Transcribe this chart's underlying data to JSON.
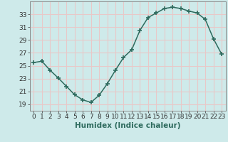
{
  "x": [
    0,
    1,
    2,
    3,
    4,
    5,
    6,
    7,
    8,
    9,
    10,
    11,
    12,
    13,
    14,
    15,
    16,
    17,
    18,
    19,
    20,
    21,
    22,
    23
  ],
  "y": [
    25.5,
    25.7,
    24.3,
    23.1,
    21.8,
    20.5,
    19.7,
    19.3,
    20.4,
    22.2,
    24.3,
    26.3,
    27.5,
    30.5,
    32.5,
    33.2,
    33.9,
    34.1,
    33.9,
    33.5,
    33.2,
    32.2,
    29.2,
    26.8
  ],
  "line_color": "#2e6b5e",
  "marker": "+",
  "marker_size": 4,
  "marker_lw": 1.2,
  "bg_color": "#ceeaea",
  "grid_color": "#e8c8c8",
  "xlabel": "Humidex (Indice chaleur)",
  "ylim": [
    18,
    35
  ],
  "xlim": [
    -0.5,
    23.5
  ],
  "yticks": [
    19,
    21,
    23,
    25,
    27,
    29,
    31,
    33
  ],
  "xtick_labels": [
    "0",
    "1",
    "2",
    "3",
    "4",
    "5",
    "6",
    "7",
    "8",
    "9",
    "10",
    "11",
    "12",
    "13",
    "14",
    "15",
    "16",
    "17",
    "18",
    "19",
    "20",
    "21",
    "22",
    "23"
  ],
  "xlabel_fontsize": 7.5,
  "tick_fontsize": 6.5,
  "line_width": 1.1
}
